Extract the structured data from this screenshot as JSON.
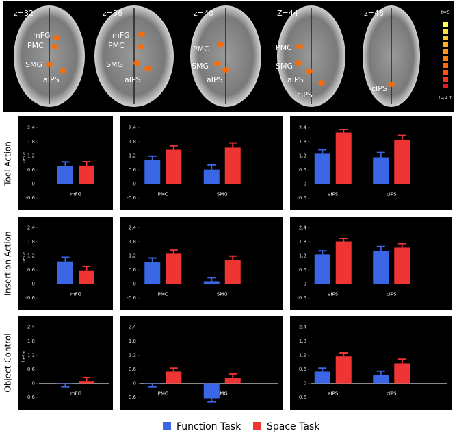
{
  "brain_panel": {
    "slices": [
      {
        "label": "z=32",
        "regions": [
          "mFG",
          "PMC",
          "SMG",
          "aIPS"
        ]
      },
      {
        "label": "z=36",
        "regions": [
          "mFG",
          "PMC",
          "SMG",
          "aIPS"
        ]
      },
      {
        "label": "z=40",
        "regions": [
          "PMC",
          "SMG",
          "aIPS"
        ]
      },
      {
        "label": "Z=44",
        "regions": [
          "PMC",
          "SMG",
          "aIPS",
          "cIPS"
        ]
      },
      {
        "label": "z=48",
        "regions": [
          "cIPS"
        ]
      }
    ],
    "colorbar": {
      "max_label": "t=8",
      "min_label": "t=4.1"
    }
  },
  "row_labels": [
    "Tool Action",
    "Insertion Action",
    "Object Control"
  ],
  "legend": [
    {
      "name": "Function Task",
      "color": "#3b66e6"
    },
    {
      "name": "Space Task",
      "color": "#ef3434"
    }
  ],
  "chart_data": [
    {
      "type": "bar",
      "ylabel": "beta",
      "categories": [
        "mFG"
      ],
      "series": [
        {
          "values": [
            0.76
          ],
          "errors": [
            0.18
          ]
        },
        {
          "values": [
            0.78
          ],
          "errors": [
            0.17
          ]
        }
      ],
      "ylim": [
        -0.8,
        2.7
      ],
      "yticks": [
        2.4,
        1.8,
        1.2,
        0.6,
        0,
        -0.6
      ]
    },
    {
      "type": "bar",
      "categories": [
        "PMC",
        "SMG"
      ],
      "series": [
        {
          "values": [
            1.02,
            0.61
          ],
          "errors": [
            0.17,
            0.2
          ]
        },
        {
          "values": [
            1.46,
            1.55
          ],
          "errors": [
            0.17,
            0.2
          ]
        }
      ],
      "ylim": [
        -0.8,
        2.7
      ],
      "yticks": [
        2.4,
        1.8,
        1.2,
        0.6,
        0,
        -0.6
      ]
    },
    {
      "type": "bar",
      "categories": [
        "aIPS",
        "cIPS"
      ],
      "series": [
        {
          "values": [
            1.29,
            1.14
          ],
          "errors": [
            0.17,
            0.2
          ]
        },
        {
          "values": [
            2.19,
            1.87
          ],
          "errors": [
            0.13,
            0.2
          ]
        }
      ],
      "ylim": [
        -0.8,
        2.7
      ],
      "yticks": [
        2.4,
        1.8,
        1.2,
        0.6,
        0,
        -0.6
      ]
    },
    {
      "type": "bar",
      "ylabel": "beta",
      "categories": [
        "mFG"
      ],
      "series": [
        {
          "values": [
            0.96
          ],
          "errors": [
            0.18
          ]
        },
        {
          "values": [
            0.58
          ],
          "errors": [
            0.17
          ]
        }
      ],
      "ylim": [
        -0.8,
        2.7
      ],
      "yticks": [
        2.4,
        1.8,
        1.2,
        0.6,
        0,
        -0.6
      ]
    },
    {
      "type": "bar",
      "categories": [
        "PMC",
        "SMG"
      ],
      "series": [
        {
          "values": [
            0.94,
            0.12
          ],
          "errors": [
            0.17,
            0.15
          ]
        },
        {
          "values": [
            1.29,
            1.02
          ],
          "errors": [
            0.15,
            0.17
          ]
        }
      ],
      "ylim": [
        -0.8,
        2.7
      ],
      "yticks": [
        2.4,
        1.8,
        1.2,
        0.6,
        0,
        -0.6
      ]
    },
    {
      "type": "bar",
      "categories": [
        "aIPS",
        "cIPS"
      ],
      "series": [
        {
          "values": [
            1.26,
            1.4
          ],
          "errors": [
            0.15,
            0.2
          ]
        },
        {
          "values": [
            1.81,
            1.55
          ],
          "errors": [
            0.13,
            0.17
          ]
        }
      ],
      "ylim": [
        -0.8,
        2.7
      ],
      "yticks": [
        2.4,
        1.8,
        1.2,
        0.6,
        0,
        -0.6
      ]
    },
    {
      "type": "bar",
      "ylabel": "beta",
      "categories": [
        "mFG"
      ],
      "series": [
        {
          "values": [
            -0.03
          ],
          "errors": [
            0.12
          ]
        },
        {
          "values": [
            0.1
          ],
          "errors": [
            0.15
          ]
        }
      ],
      "ylim": [
        -0.8,
        2.7
      ],
      "yticks": [
        2.4,
        1.8,
        1.2,
        0.6,
        0,
        -0.6
      ]
    },
    {
      "type": "bar",
      "categories": [
        "PMC",
        "SMG"
      ],
      "series": [
        {
          "values": [
            -0.03,
            -0.64
          ],
          "errors": [
            0.12,
            0.15
          ]
        },
        {
          "values": [
            0.5,
            0.22
          ],
          "errors": [
            0.15,
            0.18
          ]
        }
      ],
      "ylim": [
        -0.8,
        2.7
      ],
      "yticks": [
        2.4,
        1.8,
        1.2,
        0.6,
        0,
        -0.6
      ]
    },
    {
      "type": "bar",
      "categories": [
        "aIPS",
        "cIPS"
      ],
      "series": [
        {
          "values": [
            0.5,
            0.35
          ],
          "errors": [
            0.15,
            0.17
          ]
        },
        {
          "values": [
            1.15,
            0.85
          ],
          "errors": [
            0.15,
            0.18
          ]
        }
      ],
      "ylim": [
        -0.8,
        2.7
      ],
      "yticks": [
        2.4,
        1.8,
        1.2,
        0.6,
        0,
        -0.6
      ]
    }
  ]
}
